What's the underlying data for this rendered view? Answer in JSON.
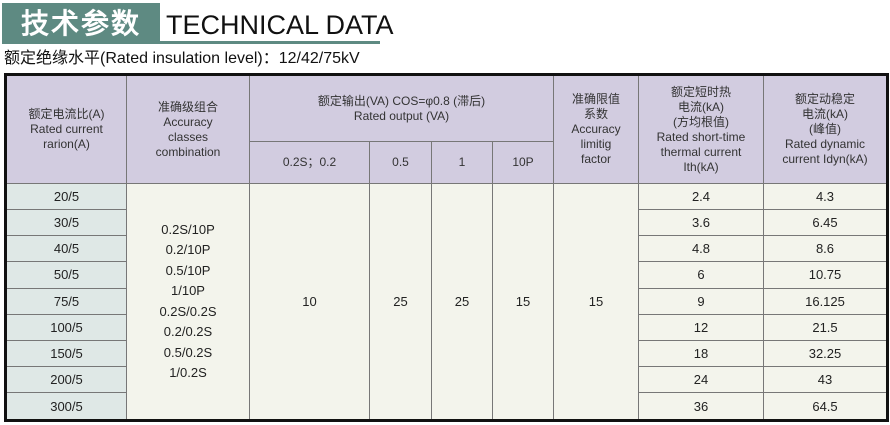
{
  "title_cn": "技术参数",
  "title_en": "TECHNICAL DATA",
  "insulation": "额定绝缘水平(Rated insulation level)：12/42/75kV",
  "headers": {
    "ratio": [
      "额定电流比(A)",
      "Rated current",
      "rarion(A)"
    ],
    "accuracy": [
      "准确级组合",
      "Accuracy",
      "classes",
      "combination"
    ],
    "output": [
      "额定输出(VA) COS=φ0.8 (滞后)",
      "Rated output (VA)"
    ],
    "output_sub": [
      "0.2S；0.2",
      "0.5",
      "1",
      "10P"
    ],
    "alf": [
      "准确限值",
      "系数",
      "Accuracy",
      "limitig",
      "factor"
    ],
    "thermal": [
      "额定短时热",
      "电流(kA)",
      "(方均根值)",
      "Rated short-time",
      "thermal current",
      "Ith(kA)"
    ],
    "dynamic": [
      "额定动稳定",
      "电流(kA)",
      "(峰值)",
      "Rated dynamic",
      "current Idyn(kA)"
    ]
  },
  "combinations": [
    "0.2S/10P",
    "0.2/10P",
    "0.5/10P",
    "1/10P",
    "0.2S/0.2S",
    "0.2/0.2S",
    "0.5/0.2S",
    "1/0.2S"
  ],
  "outputs": [
    "10",
    "25",
    "25",
    "15"
  ],
  "alf_value": "15",
  "rows": [
    {
      "ratio": "20/5",
      "ith": "2.4",
      "idyn": "4.3"
    },
    {
      "ratio": "30/5",
      "ith": "3.6",
      "idyn": "6.45"
    },
    {
      "ratio": "40/5",
      "ith": "4.8",
      "idyn": "8.6"
    },
    {
      "ratio": "50/5",
      "ith": "6",
      "idyn": "10.75"
    },
    {
      "ratio": "75/5",
      "ith": "9",
      "idyn": "16.125"
    },
    {
      "ratio": "100/5",
      "ith": "12",
      "idyn": "21.5"
    },
    {
      "ratio": "150/5",
      "ith": "18",
      "idyn": "32.25"
    },
    {
      "ratio": "200/5",
      "ith": "24",
      "idyn": "43"
    },
    {
      "ratio": "300/5",
      "ith": "36",
      "idyn": "64.5"
    }
  ],
  "colors": {
    "banner": "#5e8a82",
    "header": "#d2cce0",
    "first_col": "#dfe8e6",
    "body": "#f3f4ec"
  }
}
